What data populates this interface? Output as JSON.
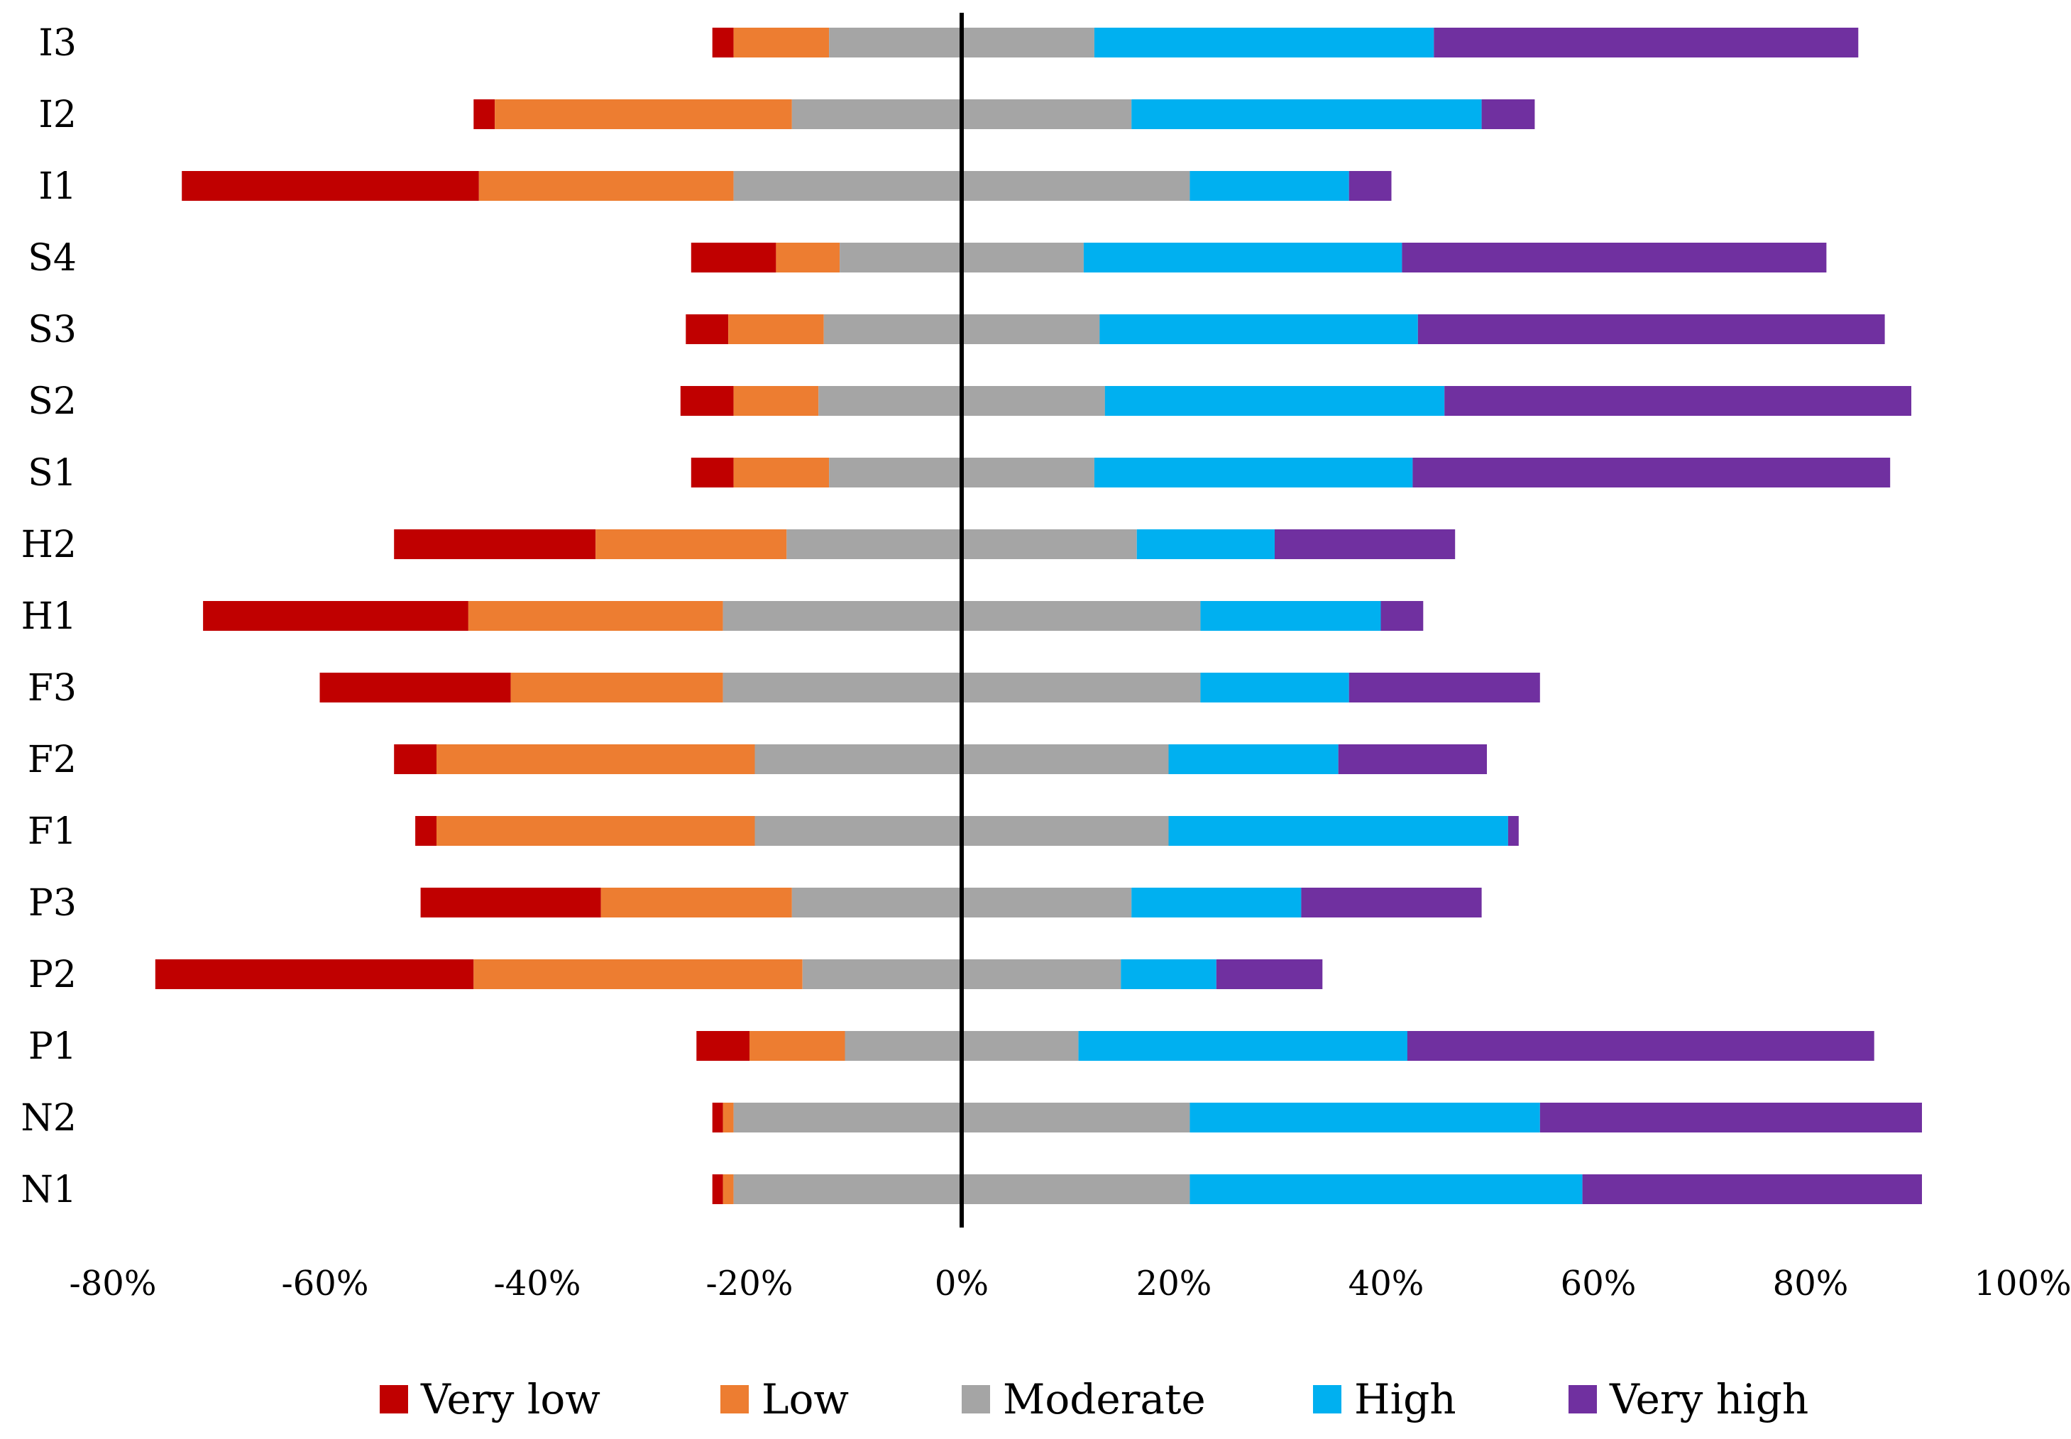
{
  "chart_data": {
    "type": "bar",
    "subtype": "diverging-stacked-horizontal",
    "title": "",
    "xlabel": "",
    "ylabel": "",
    "xlim": [
      -80,
      100
    ],
    "x_ticks": [
      -80,
      -60,
      -40,
      -20,
      0,
      20,
      40,
      60,
      80,
      100
    ],
    "x_tick_labels": [
      "-80%",
      "-60%",
      "-40%",
      "-20%",
      "0%",
      "20%",
      "40%",
      "60%",
      "80%",
      "100%"
    ],
    "grid": false,
    "legend_position": "bottom",
    "categories": [
      "I3",
      "I2",
      "I1",
      "S4",
      "S3",
      "S2",
      "S1",
      "H2",
      "H1",
      "F3",
      "F2",
      "F1",
      "P3",
      "P2",
      "P1",
      "N2",
      "N1"
    ],
    "series": [
      {
        "name": "Very low",
        "color": "#C00000",
        "values": [
          2,
          2,
          28,
          8,
          4,
          5,
          4,
          19,
          25,
          18,
          4,
          2,
          17,
          30,
          5,
          1,
          1
        ]
      },
      {
        "name": "Low",
        "color": "#ED7D31",
        "values": [
          9,
          28,
          24,
          6,
          9,
          8,
          9,
          18,
          24,
          20,
          30,
          30,
          18,
          31,
          9,
          1,
          1
        ]
      },
      {
        "name": "Moderate",
        "color": "#A5A5A5",
        "values": [
          25,
          32,
          43,
          23,
          26,
          27,
          25,
          33,
          45,
          45,
          39,
          39,
          32,
          30,
          22,
          43,
          43
        ]
      },
      {
        "name": "High",
        "color": "#00B0F0",
        "values": [
          32,
          33,
          15,
          30,
          30,
          32,
          30,
          13,
          17,
          14,
          16,
          32,
          16,
          9,
          31,
          33,
          37
        ]
      },
      {
        "name": "Very high",
        "color": "#7030A0",
        "values": [
          40,
          5,
          4,
          40,
          44,
          44,
          45,
          17,
          4,
          18,
          14,
          1,
          17,
          10,
          44,
          36,
          32
        ]
      }
    ]
  }
}
